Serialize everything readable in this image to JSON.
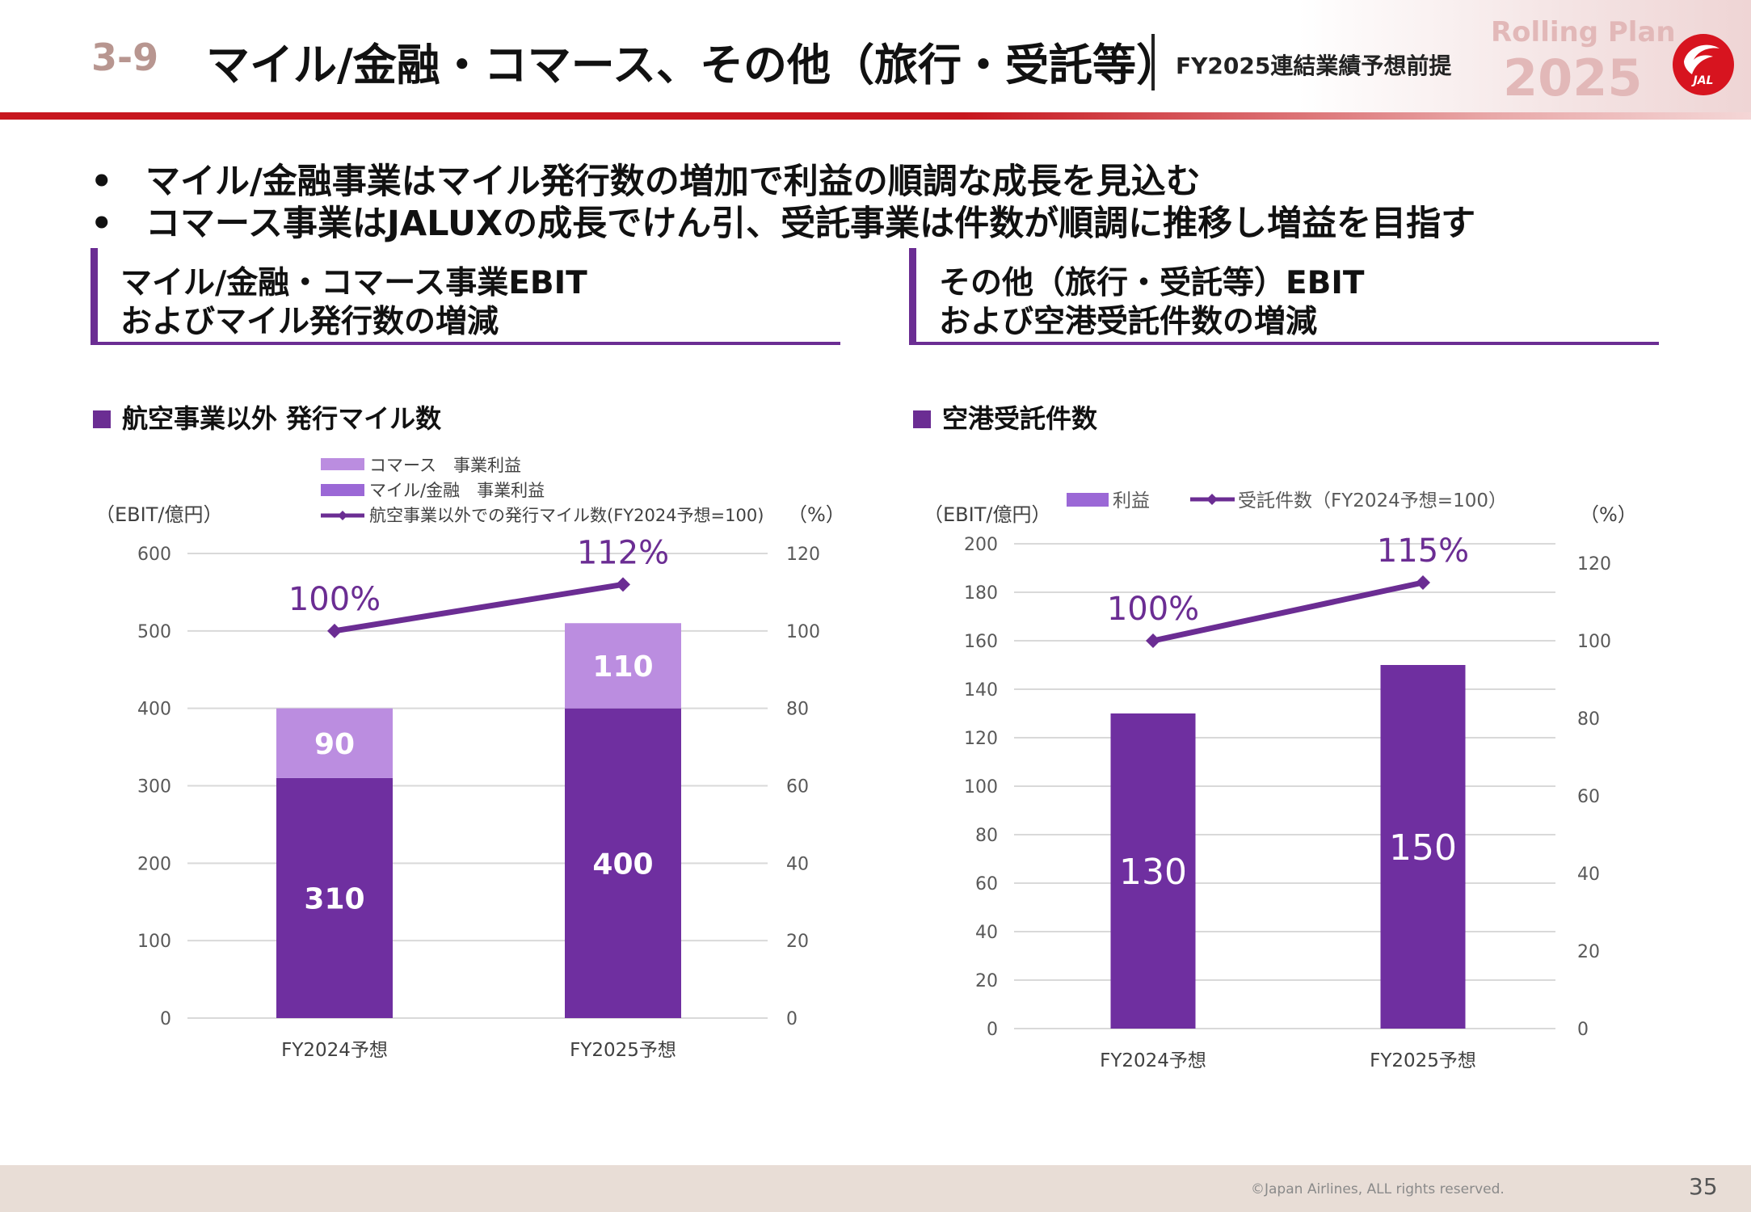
{
  "header": {
    "section_number": "3-9",
    "title": "マイル/金融・コマース、その他（旅行・受託等）",
    "subtitle": "FY2025連結業績予想前提",
    "brand_label": "Rolling Plan",
    "brand_year": "2025",
    "logo_text": "JAL"
  },
  "bullets": [
    "マイル/金融事業はマイル発行数の増加で利益の順調な成長を見込む",
    "コマース事業はJALUXの成長でけん引、受託事業は件数が順調に推移し増益を目指す"
  ],
  "bullet_marker": "•",
  "panels": {
    "left": {
      "heading_line1": "マイル/金融・コマース事業EBIT",
      "heading_line2": "およびマイル発行数の増減",
      "chart_label": "航空事業以外 発行マイル数"
    },
    "right": {
      "heading_line1": "その他（旅行・受託等）EBIT",
      "heading_line2": "および空港受託件数の増減",
      "chart_label": "空港受託件数"
    }
  },
  "colors": {
    "purple_dark": "#6f2fa0",
    "purple_light": "#bb8de0",
    "purple_mid": "#9b68d6",
    "line_purple": "#6b2d93",
    "brand_red": "#c7161e"
  },
  "chart_data": [
    {
      "type": "bar",
      "stacked": true,
      "categories": [
        "FY2024予想",
        "FY2025予想"
      ],
      "series": [
        {
          "name": "マイル/金融　事業利益",
          "values": [
            310,
            400
          ],
          "color": "#6f2fa0"
        },
        {
          "name": "コマース　事業利益",
          "values": [
            90,
            110
          ],
          "color": "#bb8de0"
        }
      ],
      "legend_swatch_colors": [
        "#bb8de0",
        "#9b68d6"
      ],
      "line_series": {
        "name": "航空事業以外での発行マイル数(FY2024予想=100)",
        "values": [
          100,
          112
        ],
        "labels": [
          "100%",
          "112%"
        ],
        "axis": "right"
      },
      "ylabel_left": "（EBIT/億円）",
      "ylabel_right": "（%）",
      "ylim_left": [
        0,
        600
      ],
      "ylim_right": [
        0,
        120
      ],
      "yticks_left": [
        "0",
        "100",
        "200",
        "300",
        "400",
        "500",
        "600"
      ],
      "yticks_right": [
        "0",
        "20",
        "40",
        "60",
        "80",
        "100",
        "120"
      ],
      "grid": true,
      "legend_position": "top"
    },
    {
      "type": "bar",
      "categories": [
        "FY2024予想",
        "FY2025予想"
      ],
      "series": [
        {
          "name": "利益",
          "values": [
            130,
            150
          ],
          "color": "#6f2fa0"
        }
      ],
      "legend_swatch_color": "#9b68d6",
      "line_series": {
        "name": "受託件数（FY2024予想=100）",
        "values": [
          100,
          115
        ],
        "labels": [
          "100%",
          "115%"
        ],
        "axis": "right"
      },
      "ylabel_left": "（EBIT/億円）",
      "ylabel_right": "（%）",
      "ylim_left": [
        0,
        200
      ],
      "ylim_right": [
        0,
        125
      ],
      "yticks_left": [
        "0",
        "20",
        "40",
        "60",
        "80",
        "100",
        "120",
        "140",
        "160",
        "180",
        "200"
      ],
      "yticks_right": [
        "0",
        "20",
        "40",
        "60",
        "80",
        "100",
        "120"
      ],
      "grid": true,
      "legend_position": "top"
    }
  ],
  "footer": {
    "copyright": "©Japan Airlines, ALL rights reserved.",
    "page_number": "35"
  }
}
